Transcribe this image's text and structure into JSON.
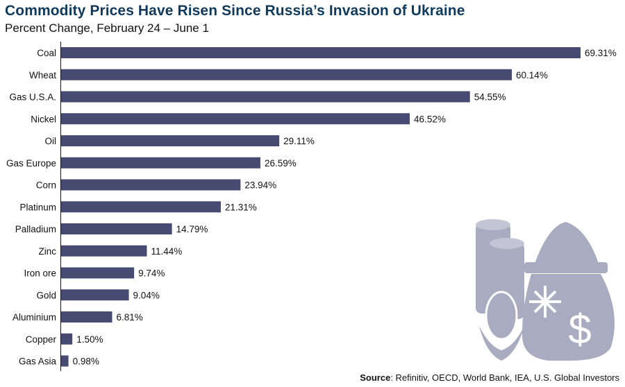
{
  "chart_data": {
    "type": "bar",
    "orientation": "horizontal",
    "title": "Commodity Prices Have Risen Since Russia’s Invasion of Ukraine",
    "subtitle": "Percent Change, February 24 – June 1",
    "categories": [
      "Coal",
      "Wheat",
      "Gas U.S.A.",
      "Nickel",
      "Oil",
      "Gas Europe",
      "Corn",
      "Platinum",
      "Palladium",
      "Zinc",
      "Iron ore",
      "Gold",
      "Aluminium",
      "Copper",
      "Gas Asia"
    ],
    "values": [
      69.31,
      60.14,
      54.55,
      46.52,
      29.11,
      26.59,
      23.94,
      21.31,
      14.79,
      11.44,
      9.74,
      9.04,
      6.81,
      1.5,
      0.98
    ],
    "labels": [
      "69.31%",
      "60.14%",
      "54.55%",
      "46.52%",
      "29.11%",
      "26.59%",
      "23.94%",
      "21.31%",
      "14.79%",
      "11.44%",
      "9.74%",
      "9.04%",
      "6.81%",
      "1.50%",
      "0.98%"
    ],
    "xlim": [
      0,
      70
    ],
    "grid": false,
    "bar_color": "#474b72",
    "icon_color": "#a9abc0"
  },
  "source": {
    "label": "Source",
    "text": ": Refinitiv, OECD, World Bank, IEA, U.S. Global Investors"
  }
}
